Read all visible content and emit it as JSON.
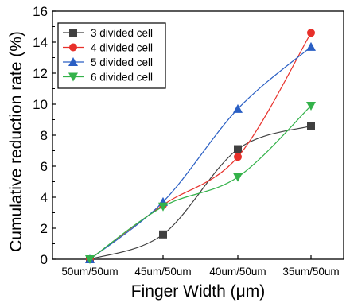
{
  "chart_data": {
    "type": "line",
    "categories": [
      "50um/50um",
      "45um/50um",
      "40um/50um",
      "35um/50um"
    ],
    "xlabel": "Finger Width (μm)",
    "ylabel": "Cumulative reduction rate (%)",
    "ylim": [
      0,
      16
    ],
    "yticks": [
      0,
      2,
      4,
      6,
      8,
      10,
      12,
      14,
      16
    ],
    "grid": false,
    "legend_position": "top-left",
    "series": [
      {
        "name": "3 divided cell",
        "color": "#404040",
        "marker": "square",
        "values": [
          0,
          1.6,
          7.1,
          8.6
        ]
      },
      {
        "name": "4 divided cell",
        "color": "#e8302a",
        "marker": "circle",
        "values": [
          0,
          3.5,
          6.6,
          14.6
        ]
      },
      {
        "name": "5 divided cell",
        "color": "#2a5fc4",
        "marker": "triangle-up",
        "values": [
          0,
          3.7,
          9.7,
          13.7
        ]
      },
      {
        "name": "6 divided cell",
        "color": "#34b24a",
        "marker": "triangle-down",
        "values": [
          0,
          3.4,
          5.3,
          9.9
        ]
      }
    ]
  }
}
